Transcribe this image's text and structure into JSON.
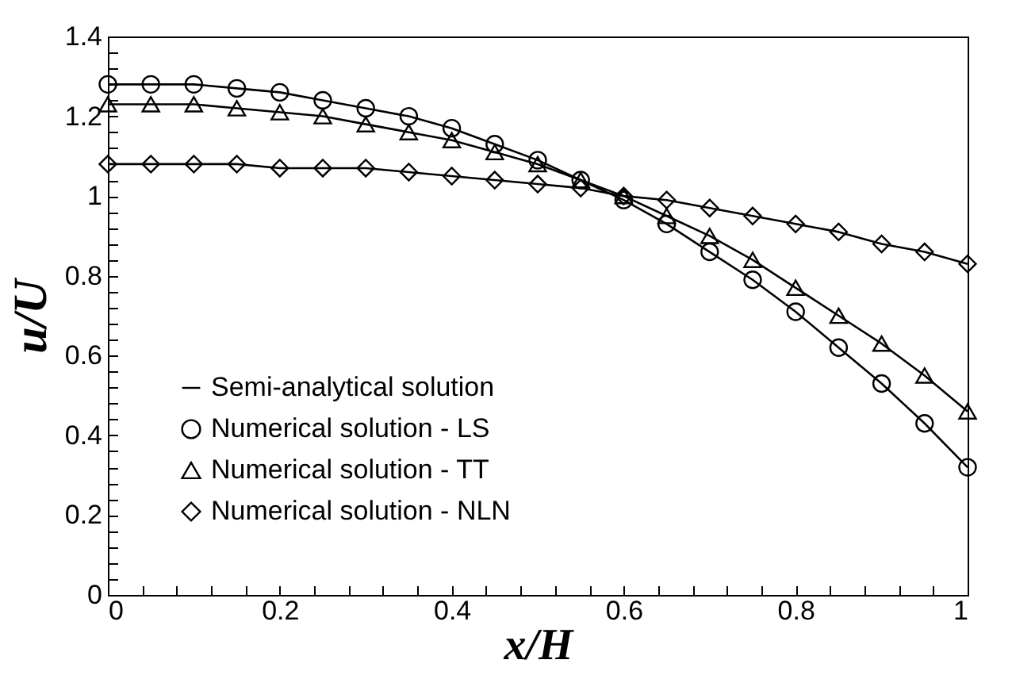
{
  "chart_data": {
    "type": "line",
    "xlabel": "x/H",
    "ylabel": "u/U",
    "x": [
      0,
      0.05,
      0.1,
      0.15,
      0.2,
      0.25,
      0.3,
      0.35,
      0.4,
      0.45,
      0.5,
      0.55,
      0.6,
      0.65,
      0.7,
      0.75,
      0.8,
      0.85,
      0.9,
      0.95,
      1
    ],
    "xlim": [
      0,
      1
    ],
    "ylim": [
      0,
      1.4
    ],
    "xticks": [
      0,
      {
        "value": 0.04,
        "label": null
      },
      {
        "value": 0.08,
        "label": null
      },
      {
        "value": 0.12,
        "label": null
      },
      {
        "value": 0.16,
        "label": null
      },
      0.2,
      {
        "value": 0.24,
        "label": null
      },
      {
        "value": 0.28,
        "label": null
      },
      {
        "value": 0.32,
        "label": null
      },
      {
        "value": 0.36,
        "label": null
      },
      0.4,
      {
        "value": 0.44,
        "label": null
      },
      {
        "value": 0.48,
        "label": null
      },
      {
        "value": 0.52,
        "label": null
      },
      {
        "value": 0.56,
        "label": null
      },
      0.6,
      {
        "value": 0.64,
        "label": null
      },
      {
        "value": 0.68,
        "label": null
      },
      {
        "value": 0.72,
        "label": null
      },
      {
        "value": 0.76,
        "label": null
      },
      0.8,
      {
        "value": 0.84,
        "label": null
      },
      {
        "value": 0.88,
        "label": null
      },
      {
        "value": 0.92,
        "label": null
      },
      {
        "value": 0.96,
        "label": null
      },
      1
    ],
    "yticks": [
      0,
      {
        "value": 0.04,
        "label": null
      },
      {
        "value": 0.08,
        "label": null
      },
      {
        "value": 0.12,
        "label": null
      },
      {
        "value": 0.16,
        "label": null
      },
      0.2,
      {
        "value": 0.24,
        "label": null
      },
      {
        "value": 0.28,
        "label": null
      },
      {
        "value": 0.32,
        "label": null
      },
      {
        "value": 0.36,
        "label": null
      },
      0.4,
      {
        "value": 0.44,
        "label": null
      },
      {
        "value": 0.48,
        "label": null
      },
      {
        "value": 0.52,
        "label": null
      },
      {
        "value": 0.56,
        "label": null
      },
      0.6,
      {
        "value": 0.64,
        "label": null
      },
      {
        "value": 0.68,
        "label": null
      },
      {
        "value": 0.72,
        "label": null
      },
      {
        "value": 0.76,
        "label": null
      },
      0.8,
      {
        "value": 0.84,
        "label": null
      },
      {
        "value": 0.88,
        "label": null
      },
      {
        "value": 0.92,
        "label": null
      },
      {
        "value": 0.96,
        "label": null
      },
      1,
      {
        "value": 1.04,
        "label": null
      },
      {
        "value": 1.08,
        "label": null
      },
      {
        "value": 1.12,
        "label": null
      },
      {
        "value": 1.16,
        "label": null
      },
      1.2,
      {
        "value": 1.24,
        "label": null
      },
      {
        "value": 1.28,
        "label": null
      },
      {
        "value": 1.32,
        "label": null
      },
      {
        "value": 1.36,
        "label": null
      },
      1.4
    ],
    "grid": false,
    "legend": "bottom left",
    "series": [
      {
        "name": "Semi-analytical solution",
        "color": "#000000",
        "marker": "none",
        "line_style": "solid",
        "values": [
          1.28,
          1.28,
          1.28,
          1.27,
          1.26,
          1.24,
          1.22,
          1.2,
          1.17,
          1.13,
          1.09,
          1.04,
          0.99,
          0.93,
          0.86,
          0.79,
          0.71,
          0.62,
          0.53,
          0.43,
          0.32
        ]
      },
      {
        "color": "#000000",
        "marker": "none",
        "line_style": "solid",
        "values": [
          1.23,
          1.23,
          1.23,
          1.22,
          1.21,
          1.2,
          1.18,
          1.16,
          1.14,
          1.11,
          1.08,
          1.04,
          1.0,
          0.95,
          0.9,
          0.84,
          0.77,
          0.7,
          0.63,
          0.55,
          0.46
        ]
      },
      {
        "color": "#000000",
        "marker": "none",
        "line_style": "solid",
        "values": [
          1.08,
          1.08,
          1.08,
          1.08,
          1.07,
          1.07,
          1.07,
          1.06,
          1.05,
          1.04,
          1.03,
          1.02,
          1.0,
          0.99,
          0.97,
          0.95,
          0.93,
          0.91,
          0.88,
          0.86,
          0.83
        ]
      },
      {
        "name": "Numerical solution - LS",
        "type": "scatter",
        "color": "#000000",
        "marker": "circle",
        "values": [
          1.28,
          1.28,
          1.28,
          1.27,
          1.26,
          1.24,
          1.22,
          1.2,
          1.17,
          1.13,
          1.09,
          1.04,
          0.99,
          0.93,
          0.86,
          0.79,
          0.71,
          0.62,
          0.53,
          0.43,
          0.32
        ]
      },
      {
        "name": "Numerical solution - TT",
        "type": "scatter",
        "color": "#000000",
        "marker": "triangle",
        "values": [
          1.23,
          1.23,
          1.23,
          1.22,
          1.21,
          1.2,
          1.18,
          1.16,
          1.14,
          1.11,
          1.08,
          1.04,
          1.0,
          0.95,
          0.9,
          0.84,
          0.77,
          0.7,
          0.63,
          0.55,
          0.46
        ]
      },
      {
        "name": "Numerical solution - NLN",
        "type": "scatter",
        "color": "#000000",
        "marker": "diamond",
        "values": [
          1.08,
          1.08,
          1.08,
          1.08,
          1.07,
          1.07,
          1.07,
          1.06,
          1.05,
          1.04,
          1.03,
          1.02,
          1.0,
          0.99,
          0.97,
          0.95,
          0.93,
          0.91,
          0.88,
          0.86,
          0.83
        ]
      }
    ]
  }
}
